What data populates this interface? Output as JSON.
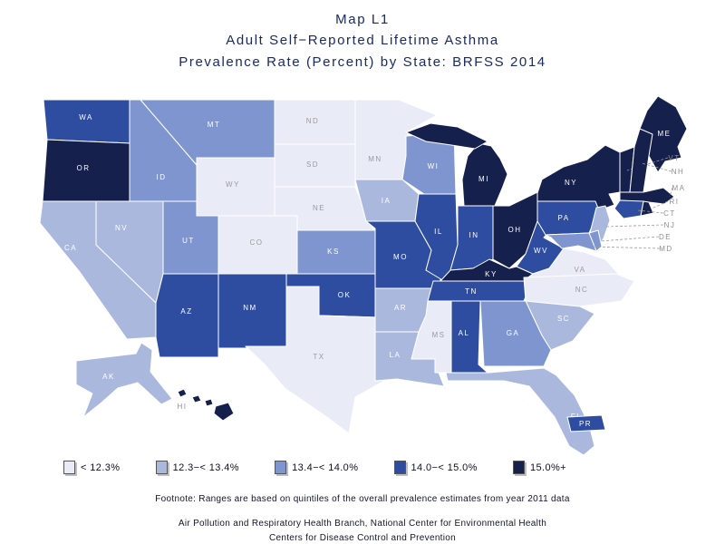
{
  "title": {
    "line1": "Map L1",
    "line2": "Adult Self−Reported Lifetime Asthma",
    "line3": "Prevalence Rate (Percent) by State: BRFSS 2014"
  },
  "legend": {
    "classes": [
      {
        "id": 1,
        "label": "< 12.3%",
        "color": "#e9ecf7"
      },
      {
        "id": 2,
        "label": "12.3−< 13.4%",
        "color": "#a9b8dc"
      },
      {
        "id": 3,
        "label": "13.4−< 14.0%",
        "color": "#7e95cf"
      },
      {
        "id": 4,
        "label": "14.0−< 15.0%",
        "color": "#2e4da0"
      },
      {
        "id": 5,
        "label": "15.0%+",
        "color": "#15204d"
      }
    ]
  },
  "footnote": "Footnote: Ranges are based on quintiles of the overall prevalence estimates from year 2011 data",
  "credits": {
    "line1": "Air Pollution and Respiratory Health Branch, National Center for Environmental Health",
    "line2": "Centers for Disease Control and Prevention"
  },
  "chart_data": {
    "type": "choropleth",
    "unit": "quintile class (1 = < 12.3%, 2 = 12.3−< 13.4%, 3 = 13.4−< 14.0%, 4 = 14.0−< 15.0%, 5 = 15.0%+)",
    "states": [
      {
        "abbr": "WA",
        "class": 4
      },
      {
        "abbr": "OR",
        "class": 5
      },
      {
        "abbr": "CA",
        "class": 2
      },
      {
        "abbr": "NV",
        "class": 2
      },
      {
        "abbr": "ID",
        "class": 3
      },
      {
        "abbr": "MT",
        "class": 3
      },
      {
        "abbr": "WY",
        "class": 1
      },
      {
        "abbr": "UT",
        "class": 3
      },
      {
        "abbr": "CO",
        "class": 1
      },
      {
        "abbr": "AZ",
        "class": 4
      },
      {
        "abbr": "NM",
        "class": 4
      },
      {
        "abbr": "ND",
        "class": 1
      },
      {
        "abbr": "SD",
        "class": 1
      },
      {
        "abbr": "NE",
        "class": 1
      },
      {
        "abbr": "KS",
        "class": 3
      },
      {
        "abbr": "OK",
        "class": 4
      },
      {
        "abbr": "TX",
        "class": 1
      },
      {
        "abbr": "MN",
        "class": 1
      },
      {
        "abbr": "IA",
        "class": 2
      },
      {
        "abbr": "MO",
        "class": 4
      },
      {
        "abbr": "AR",
        "class": 2
      },
      {
        "abbr": "LA",
        "class": 2
      },
      {
        "abbr": "WI",
        "class": 3
      },
      {
        "abbr": "IL",
        "class": 4
      },
      {
        "abbr": "MS",
        "class": 1
      },
      {
        "abbr": "MI",
        "class": 5
      },
      {
        "abbr": "IN",
        "class": 4
      },
      {
        "abbr": "OH",
        "class": 5
      },
      {
        "abbr": "KY",
        "class": 5
      },
      {
        "abbr": "TN",
        "class": 4
      },
      {
        "abbr": "WV",
        "class": 4
      },
      {
        "abbr": "VA",
        "class": 1
      },
      {
        "abbr": "NC",
        "class": 1
      },
      {
        "abbr": "SC",
        "class": 2
      },
      {
        "abbr": "GA",
        "class": 3
      },
      {
        "abbr": "AL",
        "class": 4
      },
      {
        "abbr": "FL",
        "class": 2
      },
      {
        "abbr": "PA",
        "class": 4
      },
      {
        "abbr": "NY",
        "class": 5
      },
      {
        "abbr": "ME",
        "class": 5
      },
      {
        "abbr": "VT",
        "class": 5
      },
      {
        "abbr": "NH",
        "class": 5
      },
      {
        "abbr": "MA",
        "class": 5
      },
      {
        "abbr": "RI",
        "class": 5
      },
      {
        "abbr": "CT",
        "class": 4
      },
      {
        "abbr": "NJ",
        "class": 2
      },
      {
        "abbr": "DE",
        "class": 3
      },
      {
        "abbr": "MD",
        "class": 3
      },
      {
        "abbr": "AK",
        "class": 2
      },
      {
        "abbr": "HI",
        "class": 5
      },
      {
        "abbr": "PR",
        "class": 4
      }
    ]
  }
}
